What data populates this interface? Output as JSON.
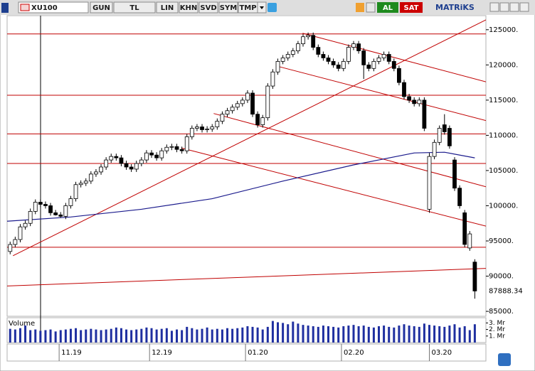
{
  "toolbar": {
    "symbol": "XU100",
    "buttons": [
      "GUN",
      "TL",
      "LIN",
      "KHN",
      "SVD",
      "SYM",
      "TMP"
    ],
    "buy": "AL",
    "sell": "SAT",
    "brand": "MATRiKS"
  },
  "chart_data": {
    "type": "candlestick",
    "open": [
      93500,
      94500,
      95200,
      97000,
      97500,
      99200,
      100500,
      100200,
      100000,
      99000,
      98700,
      98500,
      100000,
      101000,
      103000,
      103200,
      103500,
      104500,
      104800,
      105500,
      106500,
      107000,
      106800,
      106000,
      105500,
      105200,
      106000,
      106500,
      107500,
      107200,
      106800,
      107800,
      108300,
      108400,
      108000,
      107800,
      109800,
      111000,
      111200,
      110800,
      110900,
      111200,
      112000,
      113000,
      113500,
      114000,
      114500,
      115000,
      116000,
      113000,
      111500,
      112500,
      117000,
      119000,
      120500,
      121000,
      121500,
      122000,
      123000,
      124000,
      124200,
      122500,
      121500,
      121000,
      120500,
      120000,
      119500,
      120500,
      122500,
      123000,
      122000,
      120000,
      119500,
      120500,
      121000,
      121500,
      120500,
      119500,
      117500,
      115500,
      115000,
      114500,
      115000,
      99500,
      107000,
      109000,
      111500,
      111000,
      106500,
      102500,
      99000,
      94000,
      92000
    ],
    "high": [
      94900,
      95600,
      97400,
      97900,
      99600,
      100900,
      100900,
      100600,
      100400,
      99400,
      99100,
      100400,
      101400,
      103400,
      103600,
      103900,
      104900,
      105200,
      105900,
      106900,
      107400,
      107400,
      107200,
      106400,
      105900,
      106400,
      106900,
      107900,
      107900,
      107600,
      108200,
      108700,
      108800,
      108800,
      108400,
      110200,
      111400,
      111600,
      111600,
      111300,
      111600,
      112400,
      113400,
      113900,
      114400,
      114900,
      115400,
      116400,
      116400,
      113400,
      112900,
      117400,
      119400,
      120900,
      121400,
      121900,
      122400,
      123400,
      124400,
      124600,
      124600,
      122900,
      121900,
      121400,
      120900,
      120400,
      120900,
      122900,
      123400,
      123400,
      122400,
      120400,
      120900,
      121400,
      121900,
      121900,
      120900,
      119900,
      117900,
      115900,
      115400,
      115400,
      115400,
      107500,
      109400,
      111400,
      113000,
      111400,
      106900,
      102900,
      99400,
      96400,
      92400
    ],
    "low": [
      93100,
      94100,
      94800,
      96600,
      97100,
      98800,
      99800,
      99600,
      98600,
      98600,
      98300,
      98100,
      99600,
      100600,
      102600,
      102800,
      103100,
      104100,
      104400,
      105100,
      106100,
      106400,
      105600,
      105100,
      104800,
      104800,
      105600,
      106100,
      106800,
      106400,
      106400,
      107400,
      107900,
      107600,
      107400,
      107400,
      109400,
      110600,
      110400,
      110400,
      110500,
      110800,
      111600,
      112600,
      113100,
      113600,
      114100,
      114600,
      112600,
      111100,
      111100,
      112100,
      116600,
      118600,
      120100,
      120600,
      121100,
      121600,
      122600,
      123600,
      122100,
      121100,
      120600,
      120100,
      119600,
      119100,
      119100,
      120100,
      122100,
      121600,
      118000,
      119100,
      119100,
      120100,
      120600,
      120100,
      119100,
      117100,
      115100,
      114600,
      114100,
      114100,
      110600,
      99000,
      106600,
      108600,
      110100,
      108100,
      102100,
      99600,
      94100,
      93600,
      86800
    ],
    "close": [
      94500,
      95200,
      97000,
      97500,
      99200,
      100500,
      100200,
      100000,
      99000,
      98700,
      98500,
      100000,
      101000,
      103000,
      103200,
      103500,
      104500,
      104800,
      105500,
      106500,
      107000,
      106800,
      106000,
      105500,
      105200,
      106000,
      106500,
      107500,
      107200,
      106800,
      107800,
      108300,
      108400,
      108000,
      107800,
      109800,
      111000,
      111200,
      110800,
      110900,
      111200,
      112000,
      113000,
      113500,
      114000,
      114500,
      115000,
      116000,
      113000,
      111500,
      112500,
      117000,
      119000,
      120500,
      121000,
      121500,
      122000,
      123000,
      124000,
      124200,
      122500,
      121500,
      121000,
      120500,
      120000,
      119500,
      120500,
      122500,
      123000,
      122000,
      120000,
      119500,
      120500,
      121000,
      121500,
      120500,
      119500,
      117500,
      115500,
      115000,
      114500,
      115000,
      111000,
      107000,
      109000,
      111000,
      110500,
      108500,
      102500,
      100000,
      94500,
      96000,
      87888.34
    ],
    "up_color": "#ffffff",
    "down_color": "#000000",
    "wick_color": "#000000",
    "xlim": [
      -0.6,
      94.2
    ],
    "xticks": [
      {
        "value": 9.7,
        "label": "11.19"
      },
      {
        "value": 27.6,
        "label": "12.19"
      },
      {
        "value": 46.6,
        "label": "01.20"
      },
      {
        "value": 65.6,
        "label": "02.20"
      },
      {
        "value": 83,
        "label": "03.20"
      }
    ],
    "ylim": [
      84300,
      127000
    ],
    "yticks": [
      {
        "value": 125000,
        "label": "125000."
      },
      {
        "value": 120000,
        "label": "120000."
      },
      {
        "value": 115000,
        "label": "115000."
      },
      {
        "value": 110000,
        "label": "110000."
      },
      {
        "value": 105000,
        "label": "105000."
      },
      {
        "value": 100000,
        "label": "100000."
      },
      {
        "value": 95000,
        "label": "95000."
      },
      {
        "value": 90000,
        "label": "90000."
      },
      {
        "value": 85000,
        "label": "85000."
      }
    ],
    "moving_average": {
      "color": "#1a1a8c",
      "x": [
        -0.6,
        12,
        26,
        40,
        54,
        68,
        80,
        86,
        92
      ],
      "values": [
        97800,
        98400,
        99500,
        101000,
        103500,
        105800,
        107500,
        107600,
        106800
      ]
    },
    "trendlines": {
      "color": "#c00000",
      "lines": [
        {
          "x": [
            -0.6,
            94.2
          ],
          "values": [
            124400,
            124400
          ]
        },
        {
          "x": [
            -0.6,
            94.2
          ],
          "values": [
            115700,
            115700
          ]
        },
        {
          "x": [
            -0.6,
            94.2
          ],
          "values": [
            110200,
            110200
          ]
        },
        {
          "x": [
            -0.6,
            94.2
          ],
          "values": [
            106000,
            106000
          ]
        },
        {
          "x": [
            -0.6,
            94.2
          ],
          "values": [
            94100,
            94100
          ]
        },
        {
          "x": [
            -0.6,
            94.2
          ],
          "values": [
            88600,
            91100
          ]
        },
        {
          "x": [
            0.56,
            94.2
          ],
          "values": [
            92900,
            126400
          ]
        },
        {
          "x": [
            57.9,
            94.2
          ],
          "values": [
            124500,
            117600
          ]
        },
        {
          "x": [
            53,
            94.2
          ],
          "values": [
            119800,
            112100
          ]
        },
        {
          "x": [
            40.3,
            94.2
          ],
          "values": [
            113100,
            102700
          ]
        },
        {
          "x": [
            33.9,
            94.2
          ],
          "values": [
            108200,
            97100
          ]
        }
      ]
    },
    "volume": {
      "label": "Volume",
      "color": "#1f2fa0",
      "ylim": [
        0,
        3.8
      ],
      "yticks": [
        {
          "value": 3,
          "label": "3. Mr"
        },
        {
          "value": 2,
          "label": "2. Mr"
        },
        {
          "value": 1,
          "label": "1. Mr"
        }
      ],
      "values": [
        2.1,
        2.0,
        2.2,
        2.6,
        1.9,
        2.0,
        1.8,
        1.9,
        2.0,
        1.7,
        1.9,
        2.0,
        2.1,
        2.2,
        1.9,
        2.0,
        2.1,
        2.0,
        1.9,
        2.0,
        2.1,
        2.3,
        2.2,
        2.0,
        1.9,
        2.0,
        2.1,
        2.3,
        2.2,
        2.0,
        2.1,
        2.2,
        1.8,
        2.0,
        1.9,
        2.4,
        2.2,
        2.0,
        2.1,
        2.3,
        2.0,
        2.1,
        2.0,
        2.2,
        2.1,
        2.2,
        2.3,
        2.5,
        2.4,
        2.3,
        2.0,
        2.4,
        3.3,
        3.1,
        3.0,
        2.8,
        3.2,
        2.9,
        2.7,
        2.6,
        2.5,
        2.4,
        2.6,
        2.5,
        2.4,
        2.3,
        2.5,
        2.6,
        2.7,
        2.5,
        2.6,
        2.4,
        2.3,
        2.5,
        2.6,
        2.4,
        2.3,
        2.6,
        2.8,
        2.6,
        2.5,
        2.4,
        2.9,
        2.7,
        2.6,
        2.5,
        2.4,
        2.6,
        2.8,
        2.3,
        2.5,
        1.9,
        2.8
      ]
    }
  }
}
